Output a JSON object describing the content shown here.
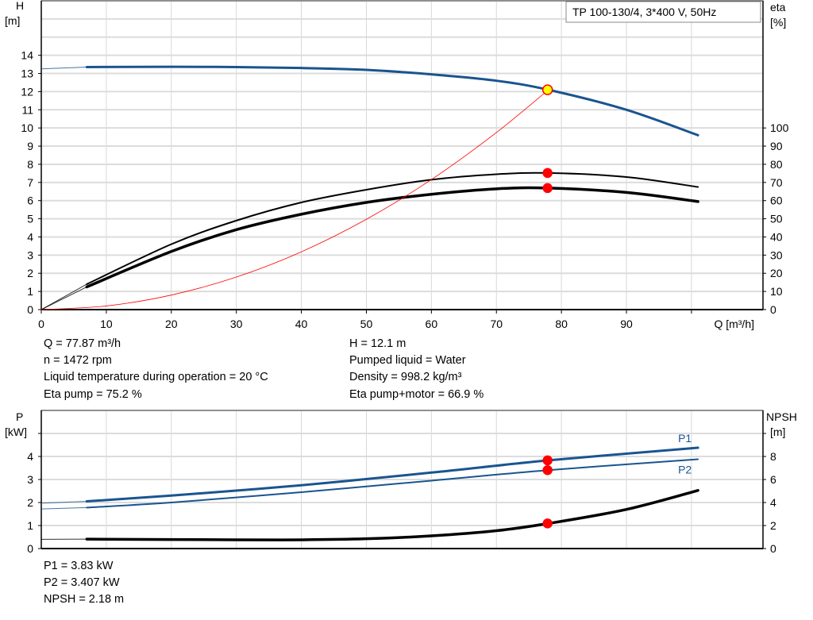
{
  "chart_data": [
    {
      "type": "line",
      "title": "TP 100-130/4, 3*400 V, 50Hz",
      "xlabel": "Q [m³/h]",
      "ylabel": "H\n[m]",
      "ylabel_lines": [
        "H",
        "[m]"
      ],
      "y2label_lines": [
        "eta",
        "[%]"
      ],
      "xlim": [
        0,
        111
      ],
      "ylim": [
        0,
        17
      ],
      "y2lim": [
        0,
        170
      ],
      "grid": true,
      "x_ticks": [
        0,
        10,
        20,
        30,
        40,
        50,
        60,
        70,
        80,
        90
      ],
      "y_ticks": [
        0,
        1,
        2,
        3,
        4,
        5,
        6,
        7,
        8,
        9,
        10,
        11,
        12,
        13,
        14
      ],
      "y2_ticks": [
        0,
        10,
        20,
        30,
        40,
        50,
        60,
        70,
        80,
        90,
        100
      ],
      "series": [
        {
          "id": "H",
          "axis": "left",
          "color": "#1a5490",
          "x": [
            7,
            20,
            30,
            40,
            50,
            60,
            70,
            78,
            90,
            101
          ],
          "y": [
            13.35,
            13.37,
            13.35,
            13.3,
            13.2,
            12.95,
            12.6,
            12.1,
            11.0,
            9.6
          ],
          "extension": {
            "x": [
              0,
              7
            ],
            "y": [
              13.25,
              13.35
            ]
          }
        },
        {
          "id": "eta-pump",
          "axis": "right",
          "color": "#000000",
          "x": [
            7,
            20,
            30,
            40,
            50,
            60,
            70,
            78,
            90,
            101
          ],
          "y": [
            14,
            36,
            49,
            59,
            66,
            71.5,
            74.5,
            75.2,
            73,
            67.5
          ],
          "extension": {
            "x": [
              0,
              7
            ],
            "y": [
              0,
              14
            ]
          }
        },
        {
          "id": "eta-pump-motor",
          "axis": "right",
          "color": "#000000",
          "x": [
            7,
            20,
            30,
            40,
            50,
            60,
            70,
            78,
            90,
            101
          ],
          "y": [
            12.5,
            32,
            44,
            52.5,
            59,
            63.5,
            66.5,
            66.9,
            64.5,
            59.5
          ],
          "extension": {
            "x": [
              0,
              7
            ],
            "y": [
              0,
              12.5
            ]
          }
        },
        {
          "id": "system-curve",
          "axis": "left",
          "color": "#ff0000",
          "x": [
            0,
            10,
            20,
            30,
            40,
            50,
            60,
            70,
            78
          ],
          "y": [
            0,
            0.2,
            0.8,
            1.79,
            3.18,
            4.97,
            7.16,
            9.75,
            12.1
          ]
        }
      ],
      "operating_points": [
        {
          "x": 77.87,
          "y": 12.1,
          "axis": "left",
          "color": "#ffff00"
        },
        {
          "x": 77.87,
          "y": 75.2,
          "axis": "right",
          "color": "#ff0000"
        },
        {
          "x": 77.87,
          "y": 66.9,
          "axis": "right",
          "color": "#ff0000"
        }
      ]
    },
    {
      "type": "line",
      "ylabel_lines": [
        "P",
        "[kW]"
      ],
      "y2label_lines": [
        "NPSH",
        "[m]"
      ],
      "xlim": [
        0,
        111
      ],
      "ylim": [
        0,
        6
      ],
      "y2lim": [
        0,
        12
      ],
      "grid": true,
      "y_ticks": [
        0,
        1,
        2,
        3,
        4,
        5
      ],
      "y_tick_labels": [
        "0",
        "1",
        "2",
        "3",
        "4",
        ""
      ],
      "y2_ticks": [
        0,
        2,
        4,
        6,
        8,
        10
      ],
      "y2_tick_labels": [
        "0",
        "2",
        "4",
        "6",
        "8",
        ""
      ],
      "series": [
        {
          "id": "P1",
          "name": "P1",
          "axis": "left",
          "color": "#1a5490",
          "x": [
            7,
            20,
            40,
            60,
            78,
            101
          ],
          "y": [
            2.05,
            2.3,
            2.75,
            3.3,
            3.83,
            4.38
          ],
          "extension": {
            "x": [
              0,
              7
            ],
            "y": [
              1.97,
              2.05
            ]
          }
        },
        {
          "id": "P2",
          "name": "P2",
          "axis": "left",
          "color": "#1a5490",
          "x": [
            7,
            20,
            40,
            60,
            78,
            101
          ],
          "y": [
            1.78,
            2.0,
            2.45,
            2.95,
            3.407,
            3.88
          ],
          "extension": {
            "x": [
              0,
              7
            ],
            "y": [
              1.72,
              1.78
            ]
          }
        },
        {
          "id": "NPSH",
          "axis": "right",
          "color": "#000000",
          "x": [
            7,
            30,
            40,
            50,
            60,
            70,
            78,
            90,
            101
          ],
          "y": [
            0.82,
            0.76,
            0.76,
            0.85,
            1.1,
            1.55,
            2.18,
            3.4,
            5.05
          ],
          "extension": {
            "x": [
              0,
              7
            ],
            "y": [
              0.8,
              0.82
            ]
          }
        }
      ],
      "operating_points": [
        {
          "x": 77.87,
          "y": 3.83,
          "axis": "left",
          "color": "#ff0000"
        },
        {
          "x": 77.87,
          "y": 3.407,
          "axis": "left",
          "color": "#ff0000"
        },
        {
          "x": 77.87,
          "y": 2.18,
          "axis": "right",
          "color": "#ff0000"
        }
      ]
    }
  ],
  "info": {
    "q": "Q = 77.87 m³/h",
    "n": "n = 1472 rpm",
    "temp": "Liquid temperature during operation = 20 °C",
    "eta_pump": "Eta pump = 75.2 %",
    "h": "H = 12.1 m",
    "liquid": "Pumped liquid = Water",
    "density": "Density = 998.2 kg/m³",
    "eta_total": "Eta pump+motor = 66.9 %",
    "p1": "P1 = 3.83 kW",
    "p2": "P2 = 3.407 kW",
    "npsh": "NPSH = 2.18 m"
  }
}
